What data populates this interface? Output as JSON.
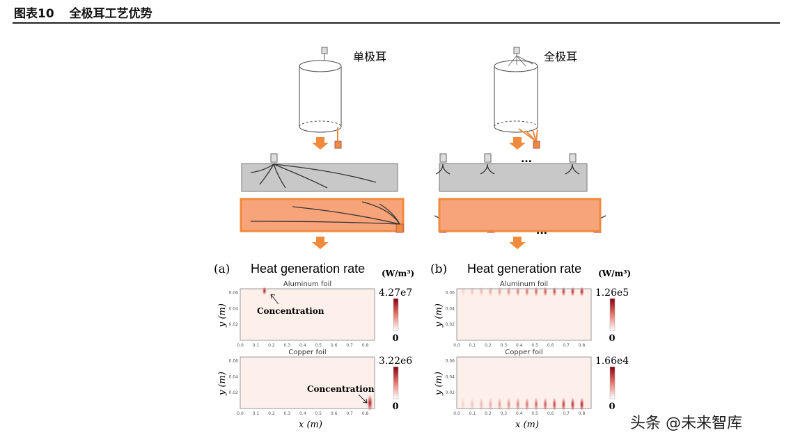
{
  "header": {
    "figure_no": "图表10",
    "title": "全极耳工艺优势"
  },
  "diagram": {
    "left_label": "单极耳",
    "right_label": "全极耳",
    "tab_plus": "+",
    "tab_minus": "-",
    "ellipsis": "..."
  },
  "panels": [
    {
      "tag": "(a)",
      "title": "Heat generation rate",
      "unit": "(W/m³)",
      "plots": [
        {
          "name": "Aluminum foil",
          "cbar_max": "4.27e7",
          "cbar_min": "0",
          "annotation": "Concentration"
        },
        {
          "name": "Copper foil",
          "cbar_max": "3.22e6",
          "cbar_min": "0",
          "annotation": "Concentration"
        }
      ]
    },
    {
      "tag": "(b)",
      "title": "Heat generation rate",
      "unit": "(W/m³)",
      "plots": [
        {
          "name": "Aluminum foil",
          "cbar_max": "1.26e5",
          "cbar_min": "0"
        },
        {
          "name": "Copper foil",
          "cbar_max": "1.66e4",
          "cbar_min": "0"
        }
      ]
    }
  ],
  "axes": {
    "xlabel": "x (m)",
    "ylabel": "y (m)",
    "xticks": [
      "0.0",
      "0.1",
      "0.2",
      "0.3",
      "0.4",
      "0.5",
      "0.6",
      "0.7",
      "0.8"
    ],
    "yticks": [
      "0.02",
      "0.04",
      "0.06"
    ],
    "xlim": [
      0,
      0.86
    ],
    "ylim": [
      0,
      0.065
    ]
  },
  "colors": {
    "orange": "#f08a3c",
    "orange_fill": "#f7a47a",
    "gray": "#c8c8c8",
    "heat": "#b0101a"
  },
  "watermark": "头条 @未来智库"
}
